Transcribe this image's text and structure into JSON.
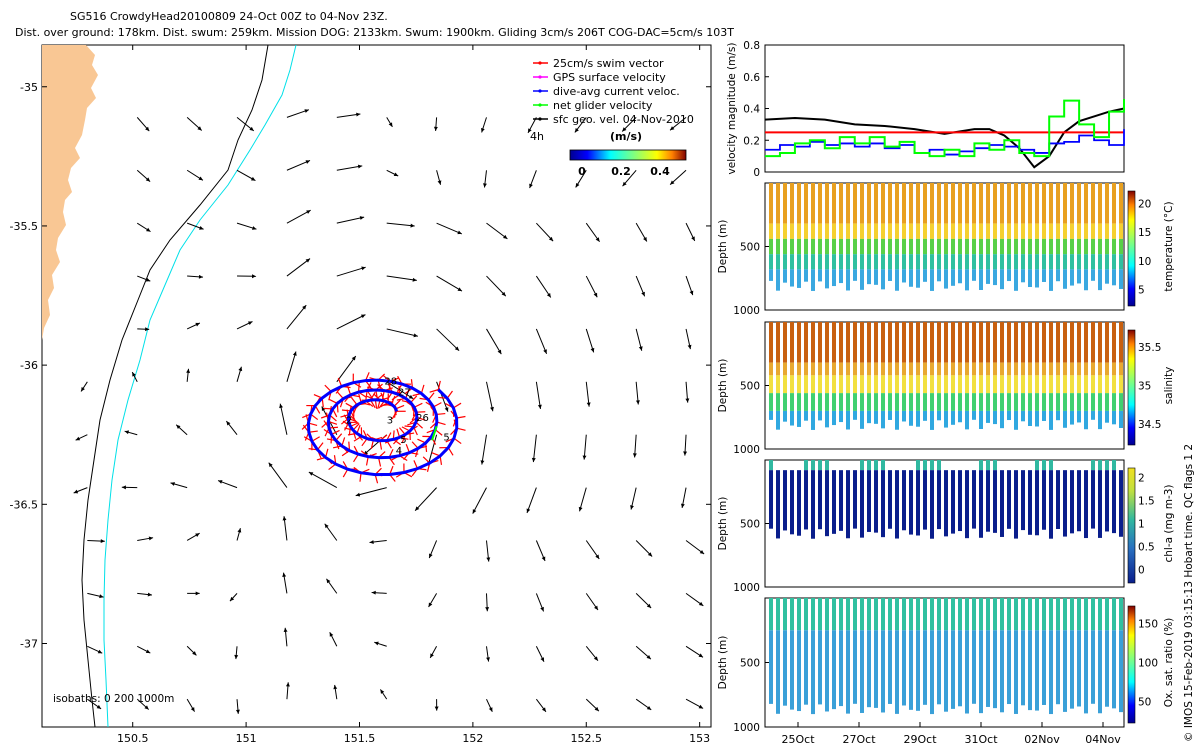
{
  "header": {
    "line1": "SG516 CrowdyHead20100809 24-Oct 00Z to 04-Nov 23Z.",
    "line2": "Dist. over ground: 178km. Dist. swum: 259km. Mission DOG: 2133km. Swum: 1900km. Gliding 3cm/s 206T COG-DAC=5cm/s 103T"
  },
  "copyright": "© IMOS 15-Feb-2019 03:15:13 Hobart time. QC flags 1 2",
  "colors": {
    "land": "#F9C794",
    "coast": "#000000",
    "isobath_200": "#000000",
    "isobath_1000": "#00E0E8",
    "swim_vector": "#FF0000",
    "gps_velocity": "#FF00FF",
    "dive_avg": "#0000FF",
    "net_glider": "#00FF00",
    "sfc_geo": "#000000"
  },
  "map": {
    "xticks": [
      "150.5",
      "151",
      "151.5",
      "152",
      "152.5",
      "153"
    ],
    "yticks": [
      "-35",
      "-35.5",
      "-36",
      "-36.5",
      "-37"
    ],
    "lon_range": [
      150.1,
      153.05
    ],
    "lat_range": [
      -37.3,
      -34.85
    ],
    "legend": [
      {
        "label": "25cm/s swim vector",
        "color": "#FF0000"
      },
      {
        "label": "GPS surface velocity",
        "color": "#FF00FF"
      },
      {
        "label": "dive-avg current veloc.",
        "color": "#0000FF"
      },
      {
        "label": "net glider velocity",
        "color": "#00FF00"
      },
      {
        "label": "sfc geo. vel. 04-Nov-2010",
        "color": "#000000"
      }
    ],
    "scale_label": "4h",
    "colorbar": {
      "title": "(m/s)",
      "ticks": [
        "0",
        "0.2",
        "0.4"
      ]
    },
    "isobath_label": "isobaths: 0  200  1000m",
    "day_labels": [
      {
        "text": "27",
        "lon": 151.67,
        "lat": -36.11
      },
      {
        "text": "28",
        "lon": 151.61,
        "lat": -36.07
      },
      {
        "text": "2",
        "lon": 151.44,
        "lat": -36.21
      },
      {
        "text": "3",
        "lon": 151.62,
        "lat": -36.21
      },
      {
        "text": "26",
        "lon": 151.75,
        "lat": -36.2
      },
      {
        "text": "5",
        "lon": 151.87,
        "lat": -36.27
      },
      {
        "text": "4",
        "lon": 151.66,
        "lat": -36.32
      },
      {
        "text": "5",
        "lon": 151.68,
        "lat": -36.28
      }
    ]
  },
  "chart_data": [
    {
      "type": "line",
      "ylabel": "velocity magnitude (m/s)",
      "ylim": [
        0,
        0.8
      ],
      "yticks": [
        "0",
        "0.2",
        "0.4",
        "0.6",
        "0.8"
      ],
      "x_days": [
        0,
        12
      ],
      "series": [
        {
          "color": "#000000",
          "x": [
            0,
            1,
            2,
            3,
            4,
            5,
            6,
            7,
            7.5,
            8,
            8.5,
            9,
            9.5,
            10,
            10.5,
            11,
            11.5,
            12
          ],
          "values": [
            0.33,
            0.34,
            0.33,
            0.3,
            0.29,
            0.27,
            0.24,
            0.27,
            0.27,
            0.23,
            0.15,
            0.03,
            0.1,
            0.25,
            0.32,
            0.35,
            0.38,
            0.4
          ]
        },
        {
          "color": "#FF0000",
          "x": [
            0,
            12
          ],
          "values": [
            0.25,
            0.25
          ]
        },
        {
          "color": "#0000FF",
          "x": [
            0,
            0.5,
            1,
            1.5,
            2,
            2.5,
            3,
            3.5,
            4,
            4.5,
            5,
            5.5,
            6,
            6.5,
            7,
            7.5,
            8,
            8.5,
            9,
            9.5,
            10,
            10.5,
            11,
            11.5,
            12
          ],
          "values": [
            0.14,
            0.17,
            0.16,
            0.19,
            0.17,
            0.18,
            0.16,
            0.18,
            0.15,
            0.17,
            0.12,
            0.14,
            0.11,
            0.13,
            0.15,
            0.17,
            0.16,
            0.14,
            0.12,
            0.18,
            0.19,
            0.23,
            0.2,
            0.17,
            0.27
          ]
        },
        {
          "color": "#00FF00",
          "x": [
            0,
            0.5,
            1,
            1.5,
            2,
            2.5,
            3,
            3.5,
            4,
            4.5,
            5,
            5.5,
            6,
            6.5,
            7,
            7.5,
            8,
            8.5,
            9,
            9.5,
            10,
            10.5,
            11,
            11.5,
            12
          ],
          "values": [
            0.1,
            0.12,
            0.18,
            0.2,
            0.15,
            0.22,
            0.18,
            0.22,
            0.16,
            0.19,
            0.12,
            0.1,
            0.14,
            0.1,
            0.18,
            0.14,
            0.2,
            0.12,
            0.1,
            0.35,
            0.45,
            0.3,
            0.22,
            0.38,
            0.46
          ]
        }
      ]
    },
    {
      "type": "heatmap",
      "ylabel": "Depth (m)",
      "ylim": [
        1000,
        0
      ],
      "yticks": [
        "0",
        "500",
        "1000"
      ],
      "colorbar_label": "temperature (°C)",
      "colorbar_ticks": [
        "5",
        "10",
        "15",
        "20"
      ],
      "bands": [
        {
          "from": 0,
          "to": 320,
          "color": "#E8A020"
        },
        {
          "from": 320,
          "to": 440,
          "color": "#F5D030"
        },
        {
          "from": 440,
          "to": 560,
          "color": "#58D048"
        },
        {
          "from": 560,
          "to": 680,
          "color": "#30C0A0"
        },
        {
          "from": 680,
          "to": 850,
          "color": "#3AA8E0"
        }
      ]
    },
    {
      "type": "heatmap",
      "ylabel": "Depth (m)",
      "ylim": [
        1000,
        0
      ],
      "yticks": [
        "0",
        "500",
        "1000"
      ],
      "colorbar_label": "salinity",
      "colorbar_ticks": [
        "34.5",
        "35",
        "35.5"
      ],
      "bands": [
        {
          "from": 0,
          "to": 320,
          "color": "#C86010"
        },
        {
          "from": 320,
          "to": 420,
          "color": "#E8A830"
        },
        {
          "from": 420,
          "to": 560,
          "color": "#F2E040"
        },
        {
          "from": 560,
          "to": 700,
          "color": "#40D070"
        },
        {
          "from": 700,
          "to": 850,
          "color": "#30A8E0"
        }
      ]
    },
    {
      "type": "heatmap",
      "ylabel": "Depth (m)",
      "ylim": [
        1000,
        0
      ],
      "yticks": [
        "0",
        "500",
        "1000"
      ],
      "colorbar_label": "chl-a (mg m-3)",
      "colorbar_ticks": [
        "0",
        "0.5",
        "1",
        "1.5",
        "2"
      ],
      "bands": [
        {
          "from": 0,
          "to": 80,
          "color": "#30B8A0"
        },
        {
          "from": 80,
          "to": 620,
          "color": "#0A1E8C"
        }
      ]
    },
    {
      "type": "heatmap",
      "ylabel": "Depth (m)",
      "ylim": [
        1000,
        0
      ],
      "yticks": [
        "0",
        "500",
        "1000"
      ],
      "colorbar_label": "Ox. sat. ratio (%)",
      "colorbar_ticks": [
        "50",
        "100",
        "150"
      ],
      "xticks": [
        "25Oct",
        "27Oct",
        "29Oct",
        "31Oct",
        "02Nov",
        "04Nov"
      ],
      "bands": [
        {
          "from": 0,
          "to": 250,
          "color": "#30C0A0"
        },
        {
          "from": 250,
          "to": 900,
          "color": "#3AA0D8"
        }
      ]
    }
  ]
}
